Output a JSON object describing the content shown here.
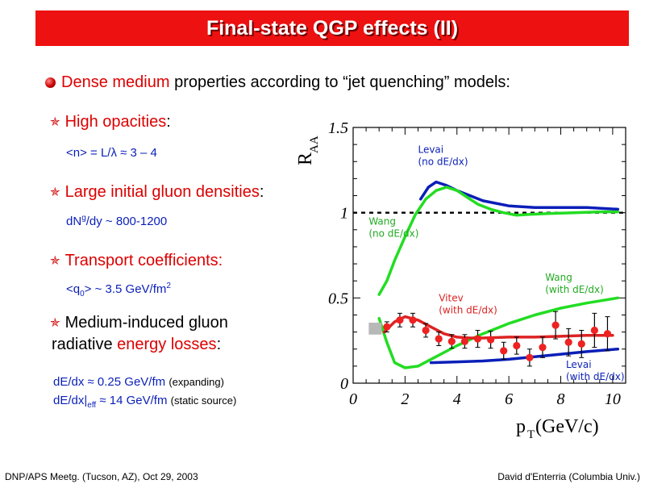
{
  "title": "Final-state QGP effects (II)",
  "main_bullet": {
    "highlight": "Dense medium",
    "rest": " properties according to “jet quenching” models:"
  },
  "items": [
    {
      "label": "High opacities",
      "suffix": ":",
      "detail_pre": "<n> = L/λ ≈ 3 – 4"
    },
    {
      "label": "Large initial gluon densities",
      "suffix": ":",
      "detail_pre": "dN",
      "detail_sup": "g",
      "detail_post": "/dy ~ 800-1200"
    },
    {
      "label": "Transport coefficients:",
      "suffix": "",
      "detail_pre": "<q",
      "detail_sub": "0",
      "detail_mid": "> ~ 3.5 GeV/fm",
      "detail_sup": "2"
    },
    {
      "line1": "Medium-induced gluon",
      "line2_pre": "radiative ",
      "line2_highlight": "energy losses",
      "line2_post": ":"
    }
  ],
  "eloss": {
    "line1_main": "dE/dx ≈ 0.25 GeV/fm",
    "line1_note": "(expanding)",
    "line2_pre": "dE/dx|",
    "line2_sub": "eff",
    "line2_main": " ≈ 14 GeV/fm",
    "line2_note": "(static source)"
  },
  "footer": {
    "left": "DNP/APS Meetg. (Tucson, AZ), Oct 29, 2003",
    "right": "David d'Enterria (Columbia Univ.)"
  },
  "colors": {
    "accent_red": "#dd0000",
    "title_bg": "#ee1111",
    "blue": "#0a1fb8",
    "green": "#22dd22",
    "marker_red": "#ee2222"
  },
  "chart_data": {
    "type": "line",
    "ylabel": "R",
    "ylabel_sub": "AA",
    "xlabel": "p",
    "xlabel_sub": "T",
    "xlabel_unit": " (GeV/c)",
    "xlim": [
      0,
      10.5
    ],
    "ylim": [
      0,
      1.5
    ],
    "x_ticks": [
      "0",
      "2",
      "4",
      "6",
      "8",
      "10"
    ],
    "y_ticks": [
      "0",
      "0.5",
      "1",
      "1.5"
    ],
    "reference_line": 1,
    "series": [
      {
        "name": "Levai (no dE/dx)",
        "color": "#0a1fb8",
        "x": [
          2.6,
          2.9,
          3.2,
          3.6,
          4.0,
          4.5,
          5.0,
          6.0,
          7.0,
          8.0,
          9.0,
          10.2
        ],
        "y": [
          1.08,
          1.15,
          1.18,
          1.16,
          1.13,
          1.1,
          1.07,
          1.04,
          1.03,
          1.03,
          1.03,
          1.02
        ]
      },
      {
        "name": "Wang (no dE/dx)",
        "color": "#22dd22",
        "x": [
          1.0,
          1.3,
          1.6,
          2.0,
          2.4,
          2.8,
          3.2,
          3.6,
          4.0,
          4.4,
          4.8,
          5.3,
          5.8,
          6.3,
          6.8,
          7.5,
          8.5,
          9.5,
          10.2
        ],
        "y": [
          0.52,
          0.6,
          0.72,
          0.86,
          0.99,
          1.08,
          1.13,
          1.15,
          1.13,
          1.09,
          1.05,
          1.02,
          1.0,
          0.985,
          0.99,
          0.995,
          1.0,
          1.005,
          1.005
        ]
      },
      {
        "name": "Wang (with dE/dx)",
        "color": "#22dd22",
        "x": [
          1.0,
          1.3,
          1.6,
          2.0,
          2.5,
          3.0,
          3.5,
          4.0,
          5.0,
          6.0,
          7.0,
          8.0,
          9.0,
          10.2
        ],
        "y": [
          0.38,
          0.24,
          0.12,
          0.09,
          0.1,
          0.14,
          0.18,
          0.22,
          0.29,
          0.35,
          0.4,
          0.44,
          0.47,
          0.5
        ]
      },
      {
        "name": "Vitev (with dE/dx)",
        "color": "#dd2222",
        "x": [
          1.2,
          1.6,
          2.0,
          2.5,
          3.0,
          3.5,
          4.0,
          4.5,
          5.0,
          6.0,
          7.0,
          8.0,
          9.0,
          10.0
        ],
        "y": [
          0.3,
          0.36,
          0.39,
          0.37,
          0.33,
          0.29,
          0.27,
          0.265,
          0.265,
          0.27,
          0.27,
          0.275,
          0.28,
          0.28
        ]
      },
      {
        "name": "Levai (with dE/dx)",
        "color": "#0a1fb8",
        "x": [
          3.0,
          4.0,
          5.0,
          6.0,
          7.0,
          8.0,
          9.0,
          10.2
        ],
        "y": [
          0.12,
          0.125,
          0.13,
          0.14,
          0.155,
          0.17,
          0.185,
          0.2
        ]
      }
    ],
    "data_points": {
      "color": "#ee2222",
      "x": [
        1.3,
        1.8,
        2.3,
        2.8,
        3.3,
        3.8,
        4.3,
        4.8,
        5.3,
        5.8,
        6.3,
        6.8,
        7.3,
        7.8,
        8.3,
        8.8,
        9.3,
        9.8
      ],
      "y": [
        0.33,
        0.37,
        0.37,
        0.31,
        0.26,
        0.245,
        0.245,
        0.26,
        0.255,
        0.19,
        0.22,
        0.15,
        0.21,
        0.34,
        0.24,
        0.23,
        0.31,
        0.29
      ],
      "err": [
        0.03,
        0.04,
        0.04,
        0.04,
        0.04,
        0.04,
        0.04,
        0.05,
        0.05,
        0.05,
        0.05,
        0.05,
        0.06,
        0.08,
        0.08,
        0.08,
        0.1,
        0.1
      ]
    },
    "systematic_box": {
      "x": 0.85,
      "y": 0.32,
      "half_height": 0.035
    },
    "annotations": [
      {
        "lines": [
          "Levai",
          "(no dE/dx)"
        ],
        "color": "#0a1fb8",
        "x": 2.5,
        "y": 1.35
      },
      {
        "lines": [
          "Wang",
          "(no dE/dx)"
        ],
        "color": "#22aa22",
        "x": 0.6,
        "y": 0.93
      },
      {
        "lines": [
          "Wang",
          "(with dE/dx)"
        ],
        "color": "#22aa22",
        "x": 7.4,
        "y": 0.6
      },
      {
        "lines": [
          "Vitev",
          "(with dE/dx)"
        ],
        "color": "#dd2222",
        "x": 3.3,
        "y": 0.48
      },
      {
        "lines": [
          "Levai",
          "(with dE/dx)"
        ],
        "color": "#0a1fb8",
        "x": 8.2,
        "y": 0.09
      }
    ]
  }
}
